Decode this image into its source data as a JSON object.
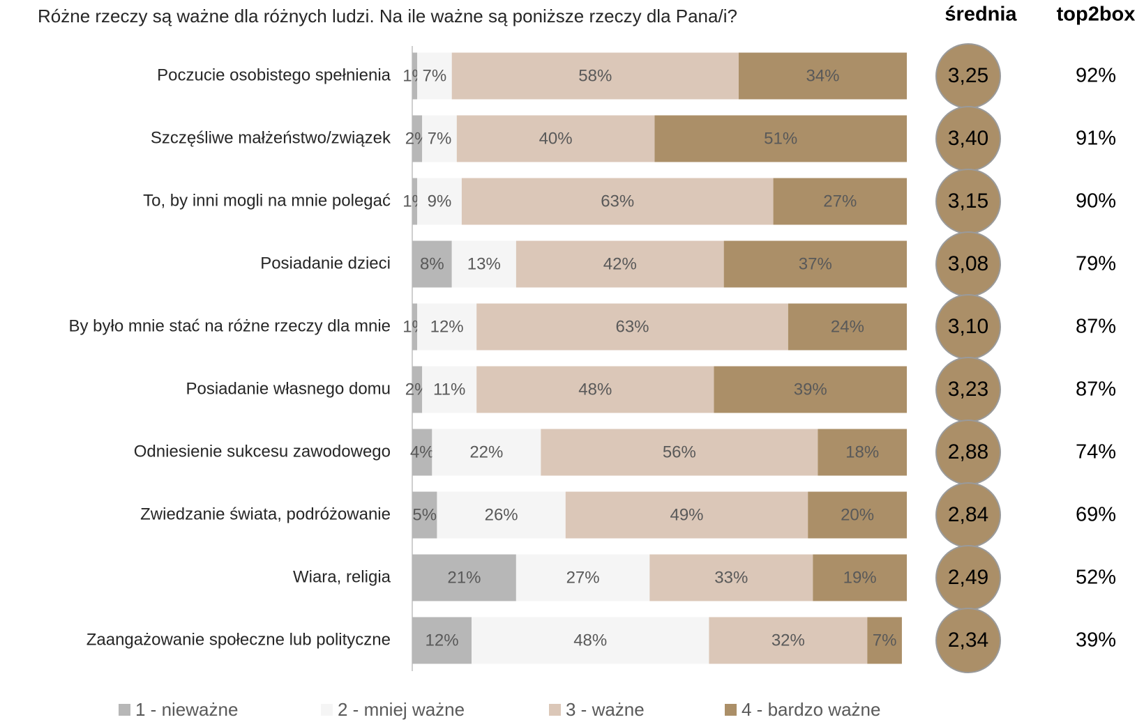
{
  "chart_data": {
    "type": "bar",
    "orientation": "horizontal",
    "stacked": true,
    "title": "Różne rzeczy są ważne dla różnych ludzi. Na ile ważne są poniższe rzeczy dla Pana/i?",
    "categories": [
      "Poczucie osobistego spełnienia",
      "Szczęśliwe małżeństwo/związek",
      "To, by inni mogli na mnie polegać",
      "Posiadanie dzieci",
      "By było mnie stać na różne rzeczy dla mnie",
      "Posiadanie własnego domu",
      "Odniesienie sukcesu zawodowego",
      "Zwiedzanie świata, podróżowanie",
      "Wiara, religia",
      "Zaangażowanie społeczne lub polityczne"
    ],
    "series": [
      {
        "name": "1 - nieważne",
        "color": "#b7b7b7",
        "values": [
          1,
          2,
          1,
          8,
          1,
          2,
          4,
          5,
          21,
          12
        ],
        "value_labels": [
          "1%",
          "2%",
          "1%",
          "8%",
          "1%",
          "2%",
          "4%",
          "5%",
          "21%",
          "12%"
        ]
      },
      {
        "name": "2 - mniej ważne",
        "color": "#f5f5f5",
        "values": [
          7,
          7,
          9,
          13,
          12,
          11,
          22,
          26,
          27,
          48
        ],
        "value_labels": [
          "7%",
          "7%",
          "9%",
          "13%",
          "12%",
          "11%",
          "22%",
          "26%",
          "27%",
          "48%"
        ]
      },
      {
        "name": "3 - ważne",
        "color": "#dbc7b8",
        "values": [
          58,
          40,
          63,
          42,
          63,
          48,
          56,
          49,
          33,
          32
        ],
        "value_labels": [
          "58%",
          "40%",
          "63%",
          "42%",
          "63%",
          "48%",
          "56%",
          "49%",
          "33%",
          "32%"
        ]
      },
      {
        "name": "4 - bardzo ważne",
        "color": "#ab8f68",
        "values": [
          34,
          51,
          27,
          37,
          24,
          39,
          18,
          20,
          19,
          7
        ],
        "value_labels": [
          "34%",
          "51%",
          "27%",
          "37%",
          "24%",
          "39%",
          "18%",
          "20%",
          "19%",
          "7%"
        ]
      }
    ],
    "xlim": [
      0,
      100
    ],
    "legend": "bottom",
    "columns": [
      {
        "title": "średnia",
        "color": "#ab8f68",
        "values": [
          3.25,
          3.4,
          3.15,
          3.08,
          3.1,
          3.23,
          2.88,
          2.84,
          2.49,
          2.34
        ],
        "value_labels": [
          "3,25",
          "3,40",
          "3,15",
          "3,08",
          "3,10",
          "3,23",
          "2,88",
          "2,84",
          "2,49",
          "2,34"
        ]
      },
      {
        "title": "top2box",
        "values": [
          92,
          91,
          90,
          79,
          87,
          87,
          74,
          69,
          52,
          39
        ],
        "value_labels": [
          "92%",
          "91%",
          "90%",
          "79%",
          "87%",
          "87%",
          "74%",
          "69%",
          "52%",
          "39%"
        ]
      }
    ]
  }
}
